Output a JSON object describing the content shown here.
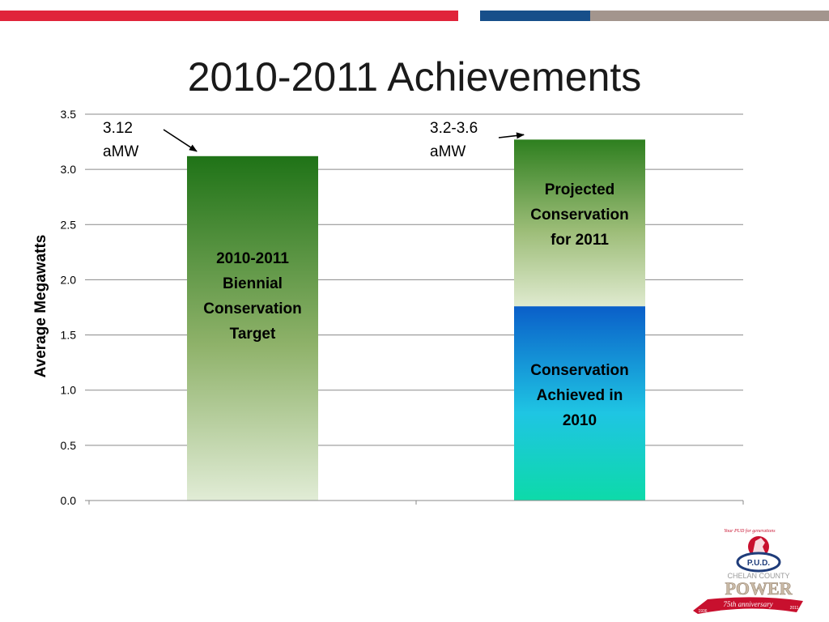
{
  "slide": {
    "title": "2010-2011 Achievements",
    "colors": {
      "stripe_red": "#e0243a",
      "stripe_blue": "#174f8a",
      "stripe_grey": "#a3958d",
      "target_green_top": "#1f7317",
      "target_green_bottom": "#e1ecd6",
      "achieved_blue_top": "#0a5fc9",
      "achieved_teal_bottom": "#0ddaa9"
    }
  },
  "chart_data": {
    "type": "bar",
    "stacked": true,
    "ylabel": "Average Megawatts",
    "ylim": [
      0,
      3.5
    ],
    "yticks": [
      "0.0",
      "0.5",
      "1.0",
      "1.5",
      "2.0",
      "2.5",
      "3.0",
      "3.5"
    ],
    "grid": true,
    "bars": [
      {
        "segments": [
          {
            "label": "2010-2011 Biennial Conservation Target",
            "value": 3.12,
            "style": "target"
          }
        ],
        "annotation": "3.12 aMW"
      },
      {
        "segments": [
          {
            "label": "Conservation Achieved in 2010",
            "value": 1.76,
            "style": "achieved"
          },
          {
            "label": "Projected Conservation for 2011",
            "value": 1.51,
            "style": "projected"
          }
        ],
        "annotation": "3.2-3.6 aMW"
      }
    ]
  },
  "logo": {
    "top_text": "Your PUD for generations",
    "badge": "P.U.D.",
    "org": "CHELAN COUNTY",
    "wordmark": "POWER",
    "ribbon": "75th anniversary",
    "year_start": "1936",
    "year_end": "2011"
  }
}
